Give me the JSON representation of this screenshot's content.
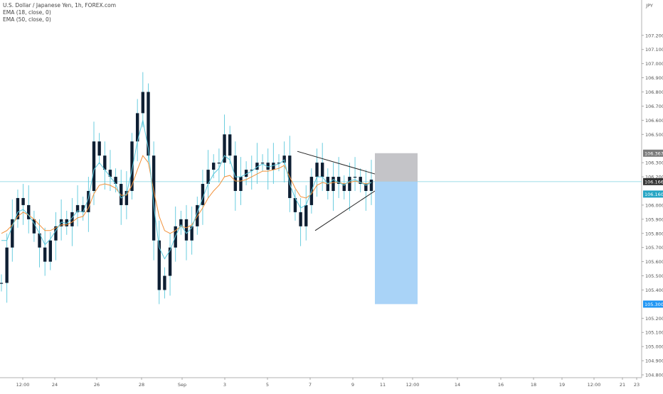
{
  "chart_data": {
    "type": "candlestick",
    "title": "U.S. Dollar / Japanese Yen, 1h, FOREX.com",
    "indicators": [
      "EMA (18, close, 0)",
      "EMA (50, close, 0)"
    ],
    "currency_label": "JPY",
    "y_ticks": [
      "107.200",
      "107.100",
      "107.000",
      "106.900",
      "106.800",
      "106.700",
      "106.600",
      "106.500",
      "106.300",
      "106.200",
      "106.000",
      "105.900",
      "105.800",
      "105.700",
      "105.600",
      "105.500",
      "105.400",
      "105.200",
      "105.100",
      "105.000",
      "104.900",
      "104.800"
    ],
    "ylim": [
      104.78,
      107.45
    ],
    "x_ticks": [
      "12:00",
      "24",
      "26",
      "28",
      "Sep",
      "3",
      "5",
      "7",
      "9",
      "11",
      "12:00",
      "14",
      "16",
      "18",
      "19",
      "12:00",
      "21",
      "23"
    ],
    "price_labels": {
      "stop": "106.367",
      "entry": "106.166",
      "current": "106.160",
      "target": "105.300"
    },
    "price_values": [
      105.45,
      105.7,
      105.9,
      106.05,
      106.0,
      105.9,
      105.8,
      105.7,
      105.6,
      105.75,
      105.85,
      105.9,
      105.85,
      105.95,
      106.0,
      105.95,
      106.1,
      106.45,
      106.35,
      106.25,
      106.2,
      106.15,
      106.0,
      106.1,
      106.45,
      106.65,
      106.8,
      106.35,
      105.75,
      105.4,
      105.5,
      105.7,
      105.85,
      105.9,
      105.75,
      105.85,
      106.0,
      106.15,
      106.25,
      106.3,
      106.3,
      106.5,
      106.35,
      106.1,
      106.2,
      106.25,
      106.25,
      106.3,
      106.3,
      106.25,
      106.3,
      106.3,
      106.35,
      106.05,
      105.95,
      105.85,
      106.0,
      106.2,
      106.3,
      106.2,
      106.1,
      106.2,
      106.15,
      106.1,
      106.2,
      106.2,
      106.15,
      106.1,
      106.18
    ],
    "ema18_values": [
      105.75,
      105.75,
      105.85,
      105.95,
      105.97,
      105.93,
      105.87,
      105.8,
      105.72,
      105.76,
      105.82,
      105.88,
      105.87,
      105.91,
      105.96,
      105.95,
      106.05,
      106.25,
      106.3,
      106.25,
      106.2,
      106.15,
      106.05,
      106.08,
      106.25,
      106.45,
      106.6,
      106.4,
      106.0,
      105.7,
      105.62,
      105.68,
      105.78,
      105.86,
      105.8,
      105.84,
      105.95,
      106.05,
      106.15,
      106.22,
      106.26,
      106.35,
      106.32,
      106.2,
      106.2,
      106.22,
      106.24,
      106.27,
      106.29,
      106.27,
      106.28,
      106.29,
      106.32,
      106.15,
      106.05,
      105.98,
      106.0,
      106.1,
      106.2,
      106.2,
      106.15,
      106.18,
      106.16,
      106.14,
      106.17,
      106.18,
      106.16,
      106.14,
      106.16
    ],
    "ema50_values": [
      105.8,
      105.82,
      105.86,
      105.92,
      105.95,
      105.93,
      105.9,
      105.86,
      105.82,
      105.82,
      105.84,
      105.86,
      105.86,
      105.88,
      105.91,
      105.92,
      105.98,
      106.08,
      106.14,
      106.15,
      106.14,
      106.12,
      106.07,
      106.07,
      106.14,
      106.25,
      106.35,
      106.3,
      106.1,
      105.92,
      105.82,
      105.8,
      105.82,
      105.85,
      105.84,
      105.86,
      105.92,
      105.98,
      106.05,
      106.1,
      106.14,
      106.2,
      106.21,
      106.17,
      106.17,
      106.18,
      106.2,
      106.22,
      106.24,
      106.24,
      106.25,
      106.26,
      106.28,
      106.2,
      106.12,
      106.06,
      106.05,
      106.08,
      106.14,
      106.16,
      106.15,
      106.16,
      106.16,
      106.15,
      106.16,
      106.17,
      106.16,
      106.15,
      106.16
    ],
    "triangle": {
      "upper": [
        [
          106.38
        ],
        [
          106.22
        ]
      ],
      "lower": [
        [
          105.82
        ],
        [
          106.1
        ]
      ]
    },
    "position": {
      "entry": 106.166,
      "stop": 106.367,
      "target": 105.3
    },
    "colors": {
      "candles": "#0e1f33",
      "ema18": "#5bc8dc",
      "ema50": "#f29038",
      "stop_zone": "#c4c4c8",
      "target_zone": "#a9d3f7",
      "current_label": "#26a5c4",
      "target_label": "#2196f3",
      "stop_label": "#7b7b7b",
      "entry_label": "#333333"
    },
    "grid": false
  }
}
